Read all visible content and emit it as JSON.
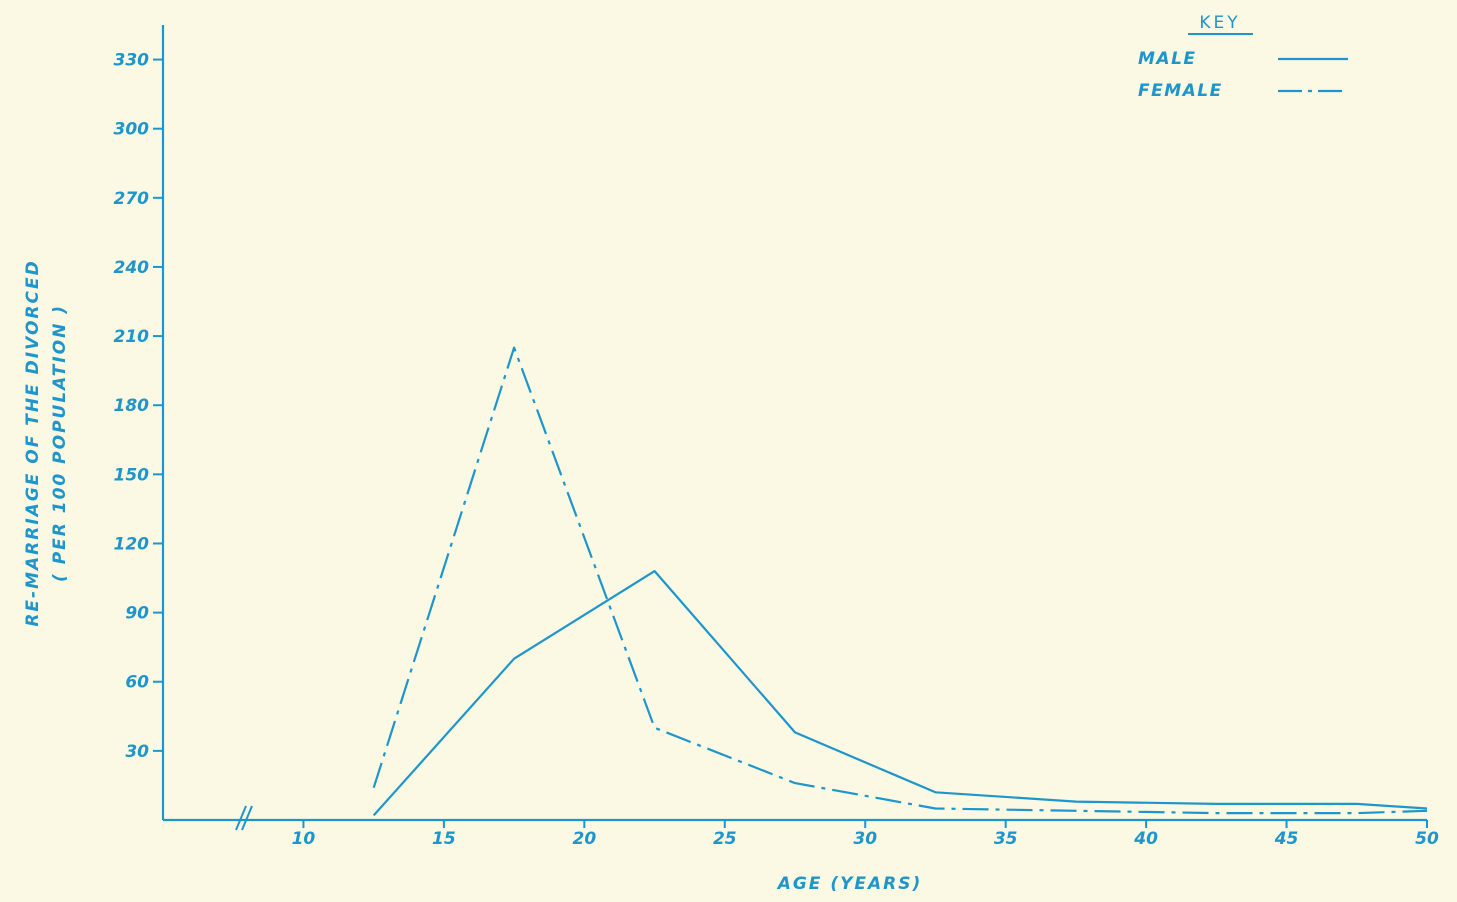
{
  "colors": {
    "ink": "#1e96cc",
    "paper": "#fbf8e4"
  },
  "chart_data": {
    "type": "line",
    "title": "",
    "xlabel": "AGE (YEARS)",
    "ylabel": [
      "RE-MARRIAGE OF THE DIVORCED",
      "( PER 100 POPULATION )"
    ],
    "xlim": [
      5,
      50
    ],
    "ylim": [
      0,
      345
    ],
    "x_axis_break": true,
    "x_ticks": [
      10,
      15,
      20,
      25,
      30,
      35,
      40,
      45,
      50
    ],
    "x_tick_labels": [
      "10",
      "15",
      "20",
      "25",
      "30",
      "35",
      "40",
      "45",
      "50"
    ],
    "y_ticks": [
      30,
      60,
      90,
      120,
      150,
      180,
      210,
      240,
      270,
      300,
      330
    ],
    "y_tick_labels": [
      "30",
      "60",
      "90",
      "120",
      "150",
      "180",
      "210",
      "240",
      "270",
      "300",
      "330"
    ],
    "grid": false,
    "legend": {
      "title": "KEY",
      "position": "top-right",
      "entries": [
        {
          "label": "MALE",
          "style": "solid"
        },
        {
          "label": "FEMALE",
          "style": "dash-dot"
        }
      ]
    },
    "series": [
      {
        "name": "MALE",
        "style": "solid",
        "x": [
          12.5,
          17.5,
          22.5,
          27.5,
          32.5,
          37.5,
          42.5,
          47.5,
          50
        ],
        "y": [
          2,
          70,
          108,
          38,
          12,
          8,
          7,
          7,
          5
        ]
      },
      {
        "name": "FEMALE",
        "style": "dash-dot",
        "x": [
          12.5,
          17.5,
          22.5,
          27.5,
          32.5,
          37.5,
          42.5,
          47.5,
          50
        ],
        "y": [
          14,
          205,
          40,
          16,
          5,
          4,
          3,
          3,
          4
        ]
      }
    ]
  }
}
